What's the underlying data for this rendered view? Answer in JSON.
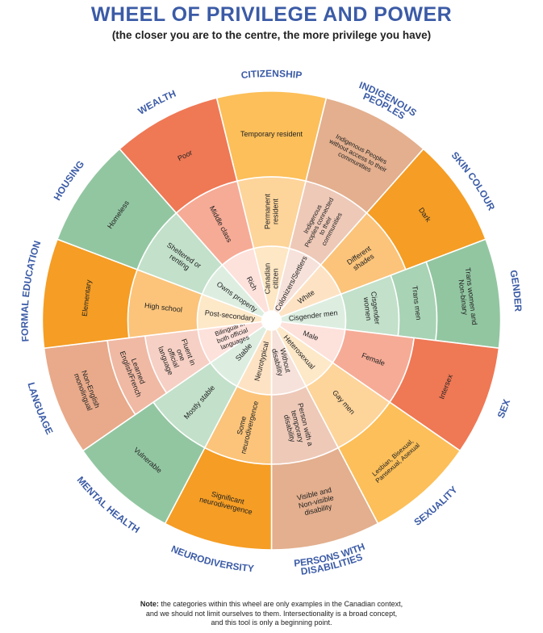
{
  "title": "WHEEL OF PRIVILEGE AND POWER",
  "subtitle": "(the closer you are to the centre, the more privilege you have)",
  "note": {
    "label": "Note:",
    "line1": " the categories within this wheel are only examples in the Canadian context,",
    "line2": "and we should not limit ourselves to them. Intersectionality is a broad concept,",
    "line3": "and this tool is only a beginning point."
  },
  "colors": {
    "title": "#3b5ba6",
    "category": "#3b5ba6",
    "divider": "#ffffff"
  },
  "categories": [
    {
      "name": "CITIZENSHIP",
      "rings": [
        {
          "label": "Canadian citizen",
          "color": "#fde7c4"
        },
        {
          "label": "Permanent resident",
          "color": "#fdd49a"
        },
        {
          "label": "Temporary resident",
          "color": "#fcbf59"
        }
      ]
    },
    {
      "name": "INDIGENOUS PEOPLES",
      "rings": [
        {
          "label": "Colonizers/Settlers",
          "color": "#f6e2da"
        },
        {
          "label": "Indigenous Peoples connected to their communities",
          "color": "#eec9b8"
        },
        {
          "label": "Indigenous Peoples without access to their communities",
          "color": "#e3af8e"
        }
      ]
    },
    {
      "name": "SKIN COLOUR",
      "rings": [
        {
          "label": "White",
          "color": "#fde3c4"
        },
        {
          "label": "Different shades",
          "color": "#fbc47a"
        },
        {
          "label": "Dark",
          "color": "#f59d24"
        }
      ]
    },
    {
      "name": "GENDER",
      "rings": [
        {
          "label": "Cisgender men",
          "color": "#ddeee1"
        },
        {
          "label": "Cisgender women",
          "color": "#c2e0ca"
        },
        {
          "label": "Trans men",
          "color": "#a8d3b5"
        },
        {
          "label": "Trans women and Non-binary",
          "color": "#92c6a1"
        }
      ]
    },
    {
      "name": "SEX",
      "rings": [
        {
          "label": "Male",
          "color": "#fde1db"
        },
        {
          "label": "Female",
          "color": "#f6ab96"
        },
        {
          "label": "Intersex",
          "color": "#ef7855"
        }
      ]
    },
    {
      "name": "SEXUALITY",
      "rings": [
        {
          "label": "Heterosexual",
          "color": "#fde8c8"
        },
        {
          "label": "Gay men",
          "color": "#fdd49a"
        },
        {
          "label": "Lesbian, Bisexual, Pansexual, Asexual",
          "color": "#fcbf59"
        }
      ]
    },
    {
      "name": "PERSONS WITH DISABILITIES",
      "rings": [
        {
          "label": "Without disability",
          "color": "#f6e2da"
        },
        {
          "label": "Person with a temporary disability",
          "color": "#eec9b8"
        },
        {
          "label": "Visible and Non-visible disability",
          "color": "#e3af8e"
        }
      ]
    },
    {
      "name": "NEURODIVERSITY",
      "rings": [
        {
          "label": "Neurotypical",
          "color": "#fde3c4"
        },
        {
          "label": "Some neurodivergence",
          "color": "#fbc47a"
        },
        {
          "label": "Significant neurodivergence",
          "color": "#f59d24"
        }
      ]
    },
    {
      "name": "MENTAL HEALTH",
      "rings": [
        {
          "label": "Stable",
          "color": "#ddeee1"
        },
        {
          "label": "Mostly stable",
          "color": "#c2e0ca"
        },
        {
          "label": "Vulnerable",
          "color": "#92c6a1"
        }
      ]
    },
    {
      "name": "LANGUAGE",
      "rings": [
        {
          "label": "Bilingual in both official languages",
          "color": "#fde1db"
        },
        {
          "label": "Fluent in one official language",
          "color": "#f6d0c4"
        },
        {
          "label": "Learned English/French",
          "color": "#f0b9a4"
        },
        {
          "label": "Non-English monolingual",
          "color": "#e8aa8a"
        }
      ]
    },
    {
      "name": "FORMAL EDUCATION",
      "rings": [
        {
          "label": "Post-secondary",
          "color": "#fde8c8"
        },
        {
          "label": "High school",
          "color": "#fbc47a"
        },
        {
          "label": "Elementary",
          "color": "#f59d24"
        }
      ]
    },
    {
      "name": "HOUSING",
      "rings": [
        {
          "label": "Owns property",
          "color": "#ddeee1"
        },
        {
          "label": "Sheltered or renting",
          "color": "#c2e0ca"
        },
        {
          "label": "Homeless",
          "color": "#92c6a1"
        }
      ]
    },
    {
      "name": "WEALTH",
      "rings": [
        {
          "label": "Rich",
          "color": "#fde1db"
        },
        {
          "label": "Middle class",
          "color": "#f6ab96"
        },
        {
          "label": "Poor",
          "color": "#ef7855"
        }
      ]
    }
  ]
}
